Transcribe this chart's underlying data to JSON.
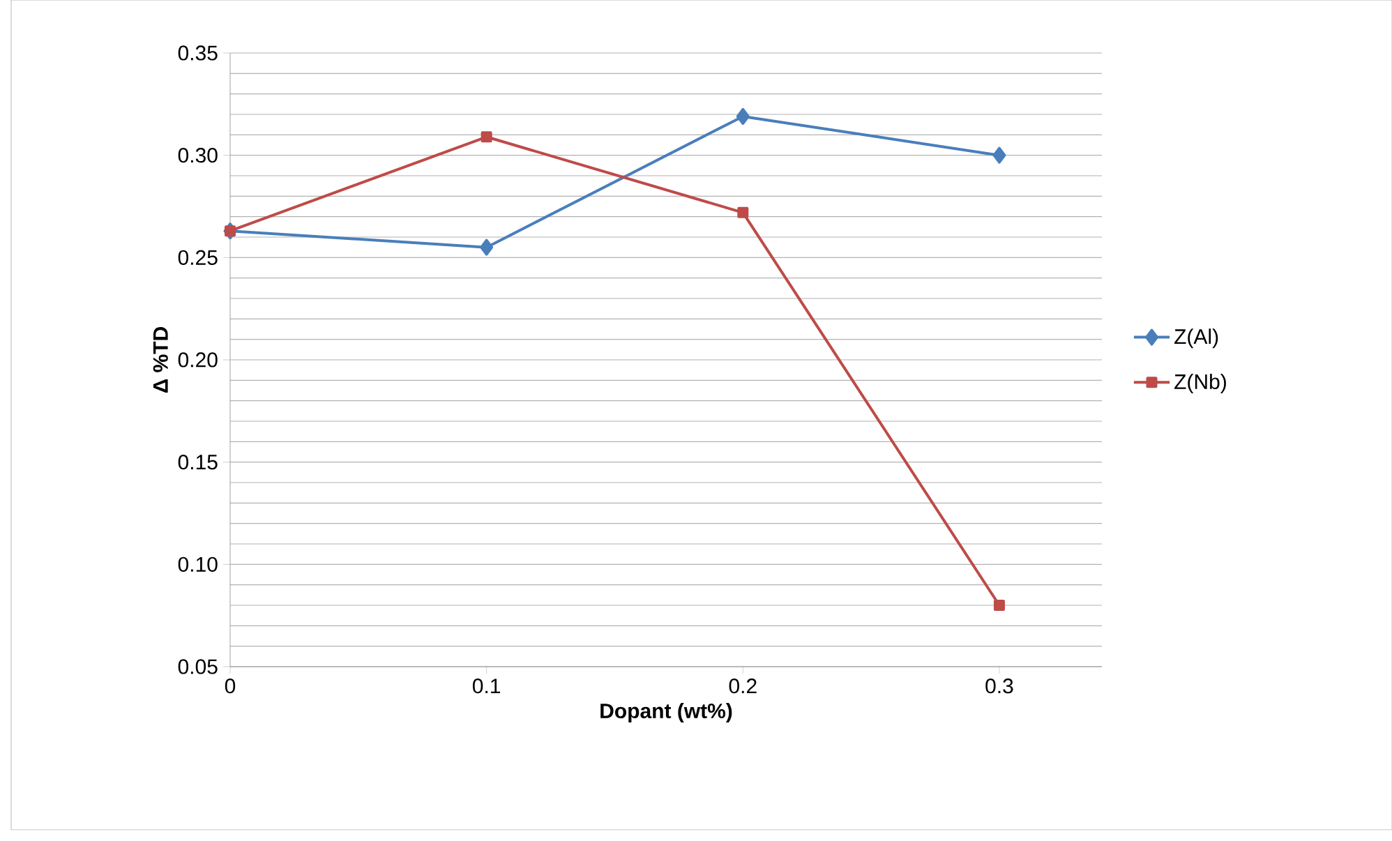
{
  "chart_data": {
    "type": "line",
    "xlabel": "Dopant (wt%)",
    "ylabel": "Δ %TD",
    "x": [
      0,
      0.1,
      0.2,
      0.3
    ],
    "series": [
      {
        "name": "Z(Al)",
        "color": "#4a7ebb",
        "marker": "diamond",
        "values": [
          0.263,
          0.255,
          0.319,
          0.3
        ]
      },
      {
        "name": "Z(Nb)",
        "color": "#be4b48",
        "marker": "square",
        "values": [
          0.263,
          0.309,
          0.272,
          0.08
        ]
      }
    ],
    "xlim": [
      0,
      0.34
    ],
    "xticks": [
      0,
      0.1,
      0.2,
      0.3
    ],
    "ylim": [
      0.05,
      0.35
    ],
    "yticks": [
      {
        "value": 0.05,
        "label": "0.05"
      },
      {
        "value": 0.1,
        "label": "0.10"
      },
      {
        "value": 0.15,
        "label": "0.15"
      },
      {
        "value": 0.2,
        "label": "0.20"
      },
      {
        "value": 0.25,
        "label": "0.25"
      },
      {
        "value": 0.3,
        "label": "0.30"
      },
      {
        "value": 0.35,
        "label": "0.35"
      }
    ],
    "grid": "y",
    "legend": "right",
    "line_style": "solid"
  }
}
